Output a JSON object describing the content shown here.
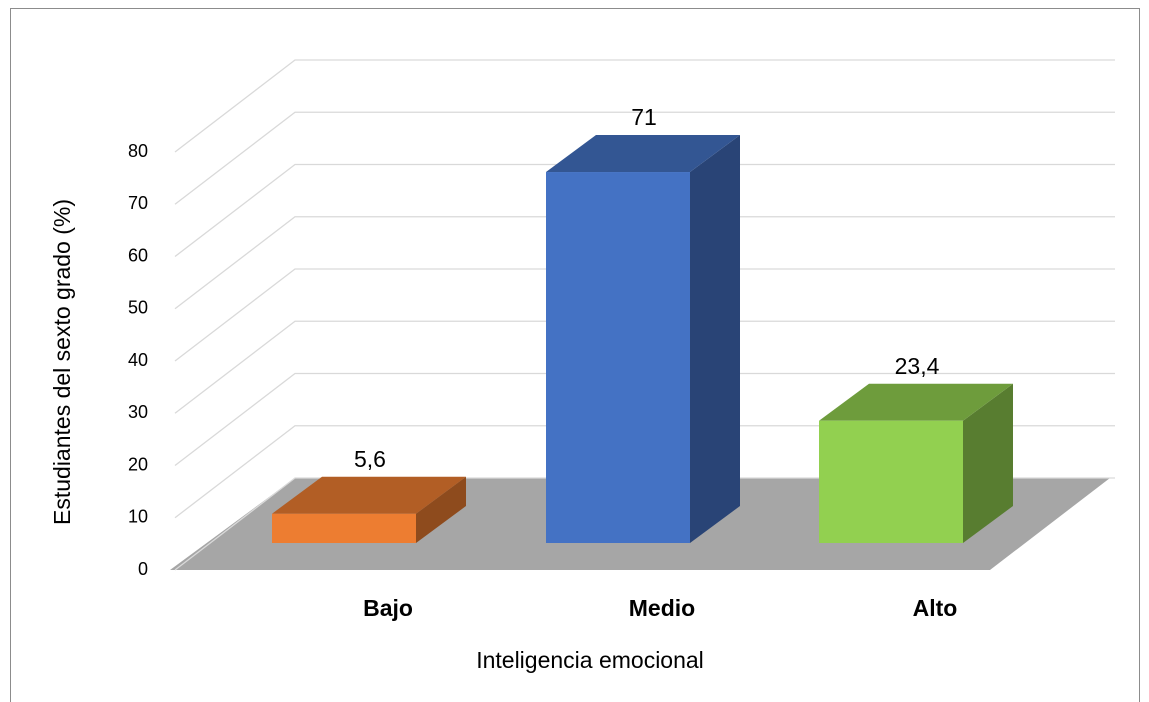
{
  "chart_data": {
    "type": "bar3d",
    "xlabel": "Inteligencia emocional",
    "ylabel": "Estudiantes del sexto grado (%)",
    "categories": [
      "Bajo",
      "Medio",
      "Alto"
    ],
    "values": [
      5.6,
      71,
      23.4
    ],
    "value_labels": [
      "5,6",
      "71",
      "23,4"
    ],
    "colors": [
      "#ed7d31",
      "#4472c4",
      "#92d050"
    ],
    "ylim": [
      0,
      80
    ],
    "yticks": [
      0,
      10,
      20,
      30,
      40,
      50,
      60,
      70,
      80
    ],
    "grid": true
  }
}
